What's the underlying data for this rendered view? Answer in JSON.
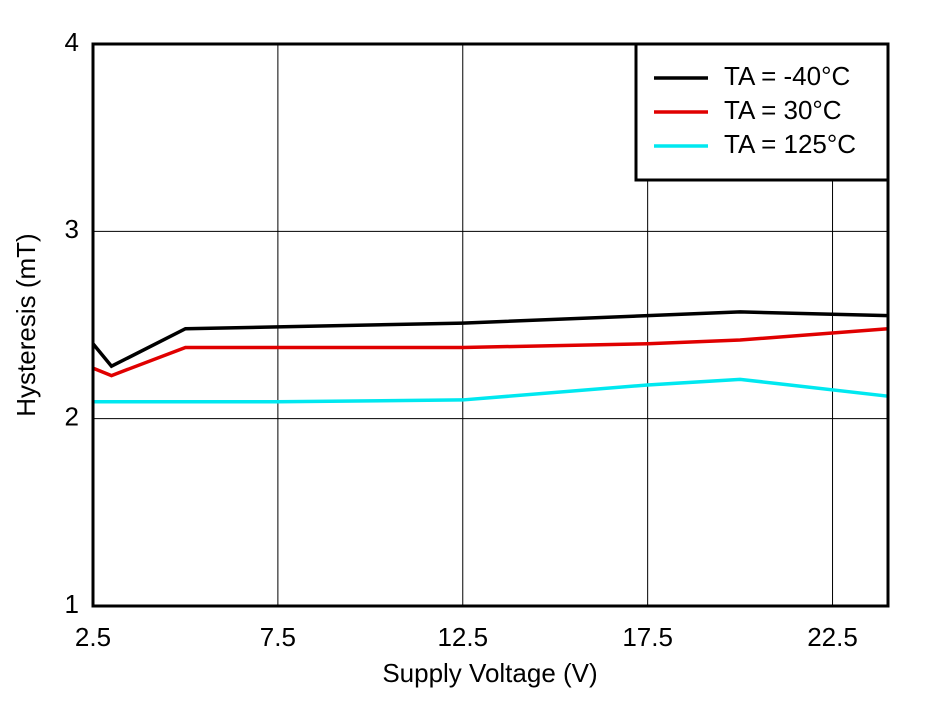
{
  "chart_data": {
    "type": "line",
    "x_label": "Supply Voltage (V)",
    "y_label": "Hysteresis (mT)",
    "x": [
      2.5,
      3,
      5,
      7.5,
      12.5,
      17.5,
      20,
      24
    ],
    "series": [
      {
        "name": "TA = -40°C",
        "color": "#000000",
        "values": [
          2.4,
          2.28,
          2.48,
          2.49,
          2.51,
          2.55,
          2.57,
          2.55
        ]
      },
      {
        "name": "TA = 30°C",
        "color": "#e00000",
        "values": [
          2.27,
          2.23,
          2.38,
          2.38,
          2.38,
          2.4,
          2.42,
          2.48
        ]
      },
      {
        "name": "TA = 125°C",
        "color": "#00e8f0",
        "values": [
          2.09,
          2.09,
          2.09,
          2.09,
          2.1,
          2.18,
          2.21,
          2.12
        ]
      }
    ],
    "xlim": [
      2.5,
      24
    ],
    "xticks": [
      2.5,
      7.5,
      12.5,
      17.5,
      22.5
    ],
    "ylim": [
      1,
      4
    ],
    "yticks": [
      1,
      2,
      3,
      4
    ],
    "grid": true,
    "legend": "upper-right"
  }
}
